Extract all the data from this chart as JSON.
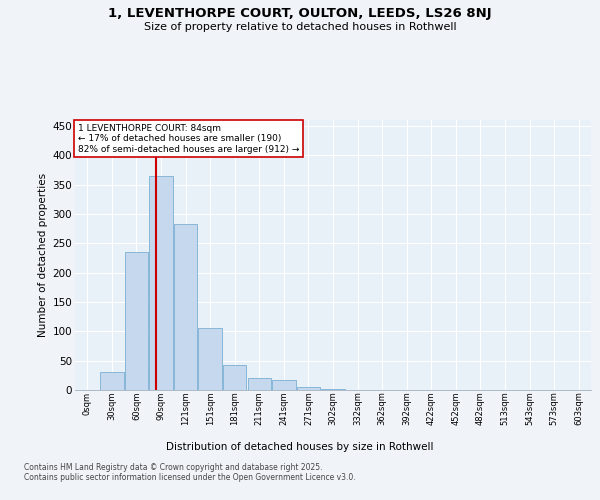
{
  "title": "1, LEVENTHORPE COURT, OULTON, LEEDS, LS26 8NJ",
  "subtitle": "Size of property relative to detached houses in Rothwell",
  "xlabel": "Distribution of detached houses by size in Rothwell",
  "ylabel": "Number of detached properties",
  "bar_labels": [
    "0sqm",
    "30sqm",
    "60sqm",
    "90sqm",
    "121sqm",
    "151sqm",
    "181sqm",
    "211sqm",
    "241sqm",
    "271sqm",
    "302sqm",
    "332sqm",
    "362sqm",
    "392sqm",
    "422sqm",
    "452sqm",
    "482sqm",
    "513sqm",
    "543sqm",
    "573sqm",
    "603sqm"
  ],
  "bar_values": [
    0,
    30,
    235,
    365,
    282,
    105,
    42,
    20,
    17,
    5,
    2,
    0,
    0,
    0,
    0,
    0,
    0,
    0,
    0,
    0,
    0
  ],
  "bar_color": "#c5d8ed",
  "bar_edgecolor": "#7bafd4",
  "vline_color": "#cc0000",
  "vline_x": 2.8,
  "annotation_title": "1 LEVENTHORPE COURT: 84sqm",
  "annotation_line1": "← 17% of detached houses are smaller (190)",
  "annotation_line2": "82% of semi-detached houses are larger (912) →",
  "annotation_box_edgecolor": "#cc0000",
  "ylim": [
    0,
    460
  ],
  "yticks": [
    0,
    50,
    100,
    150,
    200,
    250,
    300,
    350,
    400,
    450
  ],
  "bg_color": "#e8f0f8",
  "grid_color": "#ffffff",
  "fig_bg_color": "#f0f4f8",
  "footer_line1": "Contains HM Land Registry data © Crown copyright and database right 2025.",
  "footer_line2": "Contains public sector information licensed under the Open Government Licence v3.0."
}
